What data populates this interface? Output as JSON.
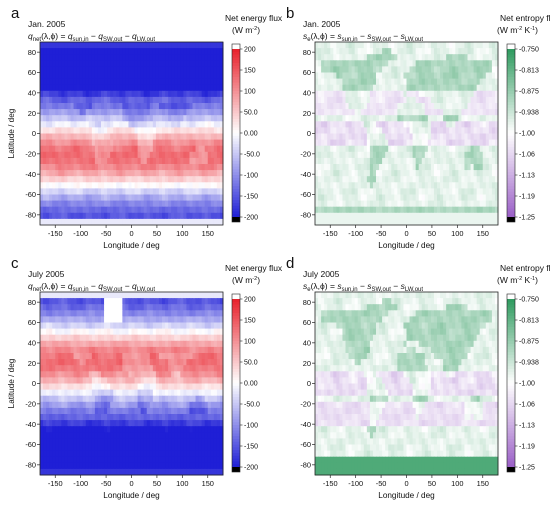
{
  "chart_data": [
    {
      "id": "a",
      "type": "heatmap",
      "panel_label": "a",
      "period": "Jan. 2005",
      "equation": {
        "lhs": "q",
        "lhs_sub": "net",
        "arg": "(λ,ϕ) = ",
        "terms": [
          {
            "sym": "q",
            "sub": "sun,in",
            "sep": ""
          },
          {
            "sym": "q",
            "sub": "SW,out",
            "sep": " − "
          },
          {
            "sym": "q",
            "sub": "LW,out",
            "sep": " − "
          }
        ]
      },
      "xlabel": "Longitude / deg",
      "ylabel": "Latitude / deg",
      "xticks": [
        "-150",
        "-100",
        "-50",
        "0",
        "50",
        "100",
        "150"
      ],
      "yticks": [
        "80",
        "60",
        "40",
        "20",
        "0",
        "-20",
        "-40",
        "-60",
        "-80"
      ],
      "xlim": [
        -180,
        180
      ],
      "ylim": [
        -90,
        90
      ],
      "colorbar": {
        "title": "Net energy flux",
        "units": "(W m",
        "units_sup": "-2",
        "units_end": ")",
        "ticks": [
          "200",
          "150",
          "100",
          "50.0",
          "0.00",
          "-50.0",
          "-100",
          "-150",
          "-200"
        ],
        "range": [
          -200,
          200
        ],
        "colormap": "blue-white-red",
        "colors": {
          "high": "#e8202a",
          "mid": "#ffffff",
          "low": "#1f1fd6",
          "over": "#ffffff",
          "under": "#000000"
        }
      },
      "field": {
        "month": 1,
        "var": "energy"
      }
    },
    {
      "id": "b",
      "type": "heatmap",
      "panel_label": "b",
      "period": "Jan. 2005",
      "equation": {
        "lhs": "s",
        "lhs_sub": "e",
        "arg": "(λ,ϕ) = ",
        "terms": [
          {
            "sym": "s",
            "sub": "sun,in",
            "sep": ""
          },
          {
            "sym": "s",
            "sub": "SW,out",
            "sep": " − "
          },
          {
            "sym": "s",
            "sub": "LW,out",
            "sep": " − "
          }
        ]
      },
      "xlabel": "Longitude / deg",
      "ylabel": "",
      "xticks": [
        "-150",
        "-100",
        "-50",
        "0",
        "50",
        "100",
        "150"
      ],
      "yticks": [
        "80",
        "60",
        "40",
        "20",
        "0",
        "-20",
        "-40",
        "-60",
        "-80"
      ],
      "xlim": [
        -180,
        180
      ],
      "ylim": [
        -90,
        90
      ],
      "colorbar": {
        "title": "Net entropy flux",
        "units": "(W m",
        "units_sup": "-2",
        "units_mid": " K",
        "units_sup2": "-1",
        "units_end": ")",
        "ticks": [
          "-0.750",
          "-0.813",
          "-0.875",
          "-0.938",
          "-1.00",
          "-1.06",
          "-1.13",
          "-1.19",
          "-1.25"
        ],
        "range": [
          -1.25,
          -0.75
        ],
        "colormap": "purple-white-green",
        "colors": {
          "high": "#2e9a5e",
          "mid": "#ffffff",
          "low": "#9a5fc6",
          "over": "#ffffff",
          "under": "#000000"
        }
      },
      "field": {
        "month": 1,
        "var": "entropy"
      }
    },
    {
      "id": "c",
      "type": "heatmap",
      "panel_label": "c",
      "period": "July 2005",
      "equation": {
        "lhs": "q",
        "lhs_sub": "net",
        "arg": "(λ,ϕ) = ",
        "terms": [
          {
            "sym": "q",
            "sub": "sun,in",
            "sep": ""
          },
          {
            "sym": "q",
            "sub": "SW,out",
            "sep": " − "
          },
          {
            "sym": "q",
            "sub": "LW,out",
            "sep": " − "
          }
        ]
      },
      "xlabel": "Longitude / deg",
      "ylabel": "Latitude / deg",
      "xticks": [
        "-150",
        "-100",
        "-50",
        "0",
        "50",
        "100",
        "150"
      ],
      "yticks": [
        "80",
        "60",
        "40",
        "20",
        "0",
        "-20",
        "-40",
        "-60",
        "-80"
      ],
      "xlim": [
        -180,
        180
      ],
      "ylim": [
        -90,
        90
      ],
      "colorbar": {
        "title": "Net energy flux",
        "units": "(W m",
        "units_sup": "-2",
        "units_end": ")",
        "ticks": [
          "200",
          "150",
          "100",
          "50.0",
          "0.00",
          "-50.0",
          "-100",
          "-150",
          "-200"
        ],
        "range": [
          -200,
          200
        ],
        "colormap": "blue-white-red",
        "colors": {
          "high": "#e8202a",
          "mid": "#ffffff",
          "low": "#1f1fd6",
          "over": "#ffffff",
          "under": "#000000"
        }
      },
      "field": {
        "month": 7,
        "var": "energy"
      }
    },
    {
      "id": "d",
      "type": "heatmap",
      "panel_label": "d",
      "period": "July 2005",
      "equation": {
        "lhs": "s",
        "lhs_sub": "e",
        "arg": "(λ,ϕ) = ",
        "terms": [
          {
            "sym": "s",
            "sub": "sun,in",
            "sep": ""
          },
          {
            "sym": "s",
            "sub": "SW,out",
            "sep": " − "
          },
          {
            "sym": "s",
            "sub": "LW,out",
            "sep": " − "
          }
        ]
      },
      "xlabel": "Longitude / deg",
      "ylabel": "",
      "xticks": [
        "-150",
        "-100",
        "-50",
        "0",
        "50",
        "100",
        "150"
      ],
      "yticks": [
        "80",
        "60",
        "40",
        "20",
        "0",
        "-20",
        "-40",
        "-60",
        "-80"
      ],
      "xlim": [
        -180,
        180
      ],
      "ylim": [
        -90,
        90
      ],
      "colorbar": {
        "title": "Net entropy flux",
        "units": "(W m",
        "units_sup": "-2",
        "units_mid": " K",
        "units_sup2": "-1",
        "units_end": ")",
        "ticks": [
          "-0.750",
          "-0.813",
          "-0.875",
          "-0.938",
          "-1.00",
          "-1.06",
          "-1.13",
          "-1.19",
          "-1.25"
        ],
        "range": [
          -1.25,
          -0.75
        ],
        "colormap": "purple-white-green",
        "colors": {
          "high": "#2e9a5e",
          "mid": "#ffffff",
          "low": "#9a5fc6",
          "over": "#ffffff",
          "under": "#000000"
        }
      },
      "field": {
        "month": 7,
        "var": "entropy"
      }
    }
  ]
}
